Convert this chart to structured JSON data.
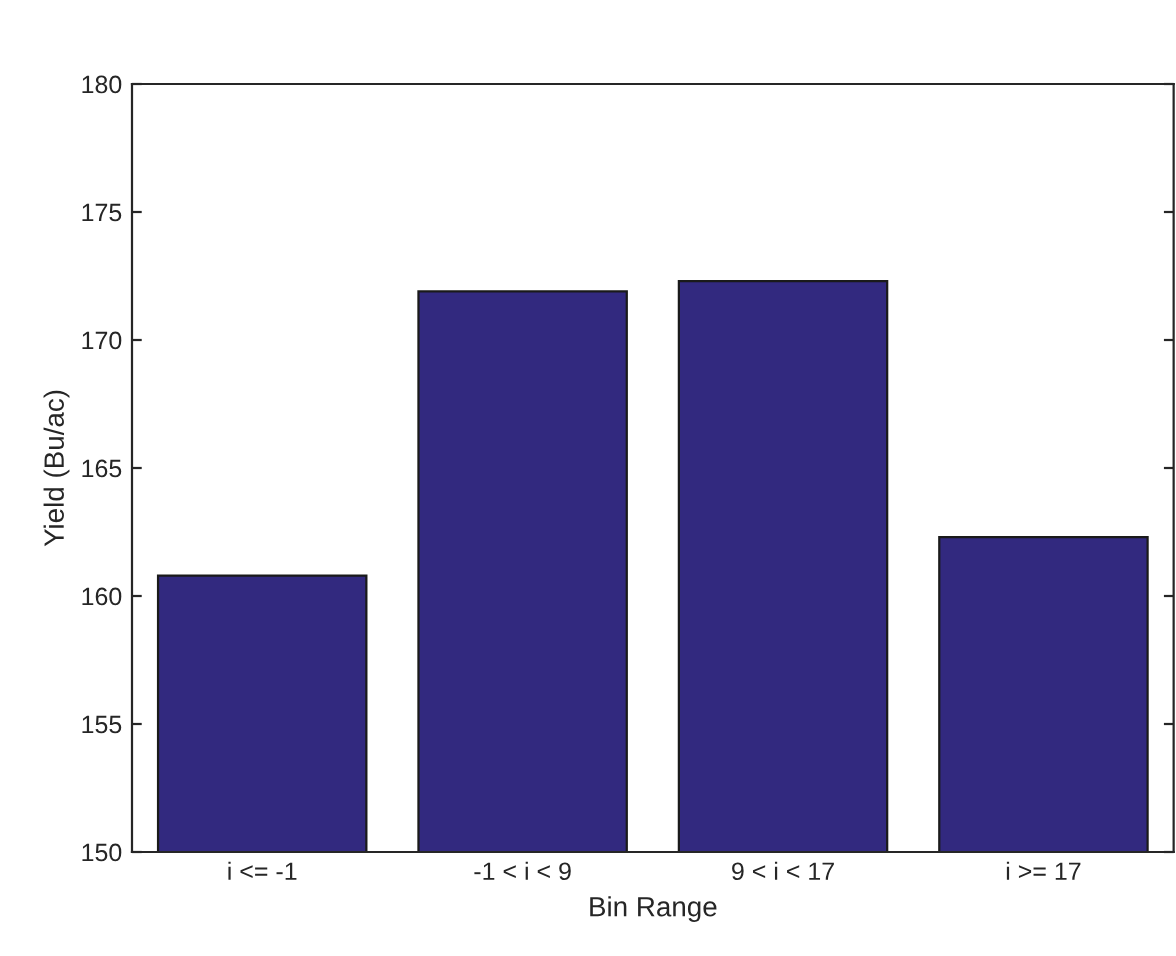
{
  "chart_data": {
    "type": "bar",
    "xlabel": "Bin Range",
    "ylabel": "Yield (Bu/ac)",
    "categories": [
      "i <= -1",
      "-1 < i < 9",
      "9 < i < 17",
      "i >= 17"
    ],
    "values": [
      160.8,
      171.9,
      172.3,
      162.3
    ],
    "color": "#32297f",
    "ylim": [
      150,
      180
    ],
    "yticks": [
      150,
      155,
      160,
      165,
      170,
      175,
      180
    ],
    "grid": false
  }
}
